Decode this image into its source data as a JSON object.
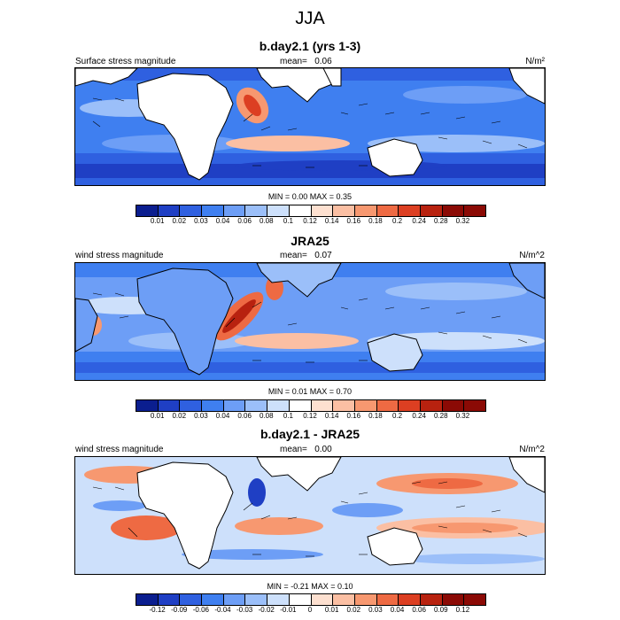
{
  "figure": {
    "title": "JJA"
  },
  "colors": {
    "scale": [
      "#0b1e8f",
      "#1f3fc4",
      "#2f60e0",
      "#3f7ff0",
      "#6d9ef6",
      "#9bbff9",
      "#cde0fb",
      "#ffffff",
      "#fde0d0",
      "#fbbfa3",
      "#f79870",
      "#ee6a43",
      "#dc3f22",
      "#b8220f",
      "#8b0a05"
    ],
    "land": "#ffffff",
    "coast": "#000000",
    "vector": "#000000"
  },
  "panels": [
    {
      "title": "b.day2.1 (yrs 1-3)",
      "left_label": "Surface stress magnitude",
      "mean_label": "mean=",
      "mean_value": "0.06",
      "unit": "N/m²",
      "min_label": "MIN =",
      "min_value": "0.00",
      "max_label": "MAX =",
      "max_value": "0.35",
      "colorbar_ticks": [
        "0.01",
        "0.02",
        "0.03",
        "0.04",
        "0.06",
        "0.08",
        "0.1",
        "0.12",
        "0.14",
        "0.16",
        "0.18",
        "0.2",
        "0.24",
        "0.28",
        "0.32"
      ]
    },
    {
      "title": "JRA25",
      "left_label": "wind stress magnitude",
      "mean_label": "mean=",
      "mean_value": "0.07",
      "unit": "N/m^2",
      "min_label": "MIN =",
      "min_value": "0.01",
      "max_label": "MAX =",
      "max_value": "0.70",
      "colorbar_ticks": [
        "0.01",
        "0.02",
        "0.03",
        "0.04",
        "0.06",
        "0.08",
        "0.1",
        "0.12",
        "0.14",
        "0.16",
        "0.18",
        "0.2",
        "0.24",
        "0.28",
        "0.32"
      ]
    },
    {
      "title": "b.day2.1 - JRA25",
      "left_label": "wind stress magnitude",
      "mean_label": "mean=",
      "mean_value": "0.00",
      "unit": "N/m^2",
      "min_label": "MIN =",
      "min_value": "-0.21",
      "max_label": "MAX =",
      "max_value": "0.10",
      "colorbar_ticks": [
        "-0.12",
        "-0.09",
        "-0.06",
        "-0.04",
        "-0.03",
        "-0.02",
        "-0.01",
        "0",
        "0.01",
        "0.02",
        "0.03",
        "0.04",
        "0.06",
        "0.09",
        "0.12"
      ]
    }
  ]
}
